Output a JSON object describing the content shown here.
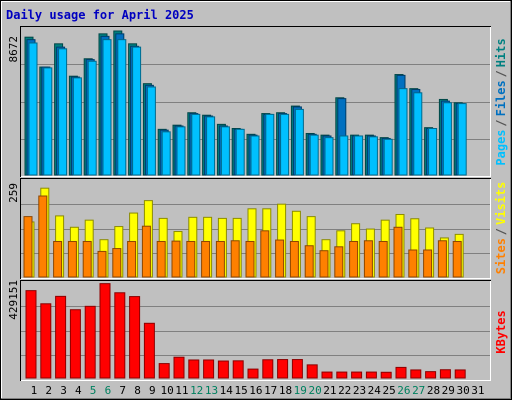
{
  "chart_data": {
    "title": "Daily usage for April 2025",
    "type": "bar",
    "categories": [
      "1",
      "2",
      "3",
      "4",
      "5",
      "6",
      "7",
      "8",
      "9",
      "10",
      "11",
      "12",
      "13",
      "14",
      "15",
      "16",
      "17",
      "18",
      "19",
      "20",
      "21",
      "22",
      "23",
      "24",
      "25",
      "26",
      "27",
      "28",
      "29",
      "30",
      "31"
    ],
    "weekend_days": [
      "5",
      "6",
      "12",
      "13",
      "19",
      "20",
      "26",
      "27"
    ],
    "panels": [
      {
        "id": "pages_files_hits",
        "axis_max_label": "8672",
        "ylim": [
          0,
          8672
        ],
        "grid": true,
        "legend_parts": [
          "Pages",
          "/",
          "Files",
          "/",
          "Hits"
        ],
        "legend_colors": [
          "#00c0ff",
          "#555555",
          "#0070c0",
          "#555555",
          "#008080"
        ],
        "series": [
          {
            "name": "Hits",
            "color": "#008080",
            "values": [
              8300,
              6500,
              7900,
              5950,
              7000,
              8500,
              8672,
              7900,
              5500,
              2750,
              3000,
              3750,
              3600,
              3050,
              2800,
              2450,
              3700,
              3750,
              4150,
              2500,
              2400,
              4650,
              2400,
              2400,
              2250,
              6050,
              5200,
              2850,
              4550,
              4350,
              null
            ]
          },
          {
            "name": "Files",
            "color": "#0070c0",
            "values": [
              8150,
              6500,
              7700,
              5900,
              6950,
              8350,
              8500,
              7750,
              5400,
              2700,
              2950,
              3700,
              3550,
              2950,
              2750,
              2400,
              3650,
              3700,
              4100,
              2450,
              2350,
              4600,
              2350,
              2350,
              2200,
              6000,
              5150,
              2800,
              4450,
              4300,
              null
            ]
          },
          {
            "name": "Pages",
            "color": "#00c0ff",
            "values": [
              7950,
              6450,
              7600,
              5850,
              6850,
              8150,
              8150,
              7700,
              5300,
              2600,
              2900,
              3650,
              3500,
              2900,
              2750,
              2350,
              3650,
              3650,
              3950,
              2400,
              2250,
              2350,
              2350,
              2300,
              2150,
              5200,
              4950,
              2800,
              4350,
              4300,
              null
            ]
          }
        ]
      },
      {
        "id": "visits_sites",
        "axis_max_label": "259",
        "ylim": [
          0,
          259
        ],
        "grid": true,
        "legend_parts": [
          "Sites",
          "/",
          "Visits"
        ],
        "legend_colors": [
          "#ff8000",
          "#555555",
          "#ffff00"
        ],
        "series": [
          {
            "name": "Visits",
            "color": "#ffff00",
            "values": [
              155,
              250,
              172,
              140,
              160,
              105,
              142,
              180,
              215,
              165,
              128,
              168,
              168,
              165,
              165,
              192,
              192,
              205,
              185,
              170,
              105,
              130,
              150,
              135,
              160,
              176,
              164,
              138,
              110,
              120,
              null
            ]
          },
          {
            "name": "Sites",
            "color": "#ff8000",
            "values": [
              170,
              228,
              100,
              100,
              100,
              72,
              80,
              100,
              143,
              100,
              101,
              100,
              100,
              100,
              102,
              100,
              130,
              104,
              100,
              88,
              74,
              85,
              100,
              102,
              100,
              140,
              76,
              76,
              102,
              100,
              null
            ]
          }
        ]
      },
      {
        "id": "kbytes",
        "axis_max_label": "429151",
        "ylim": [
          0,
          429151
        ],
        "grid": true,
        "legend_parts": [
          "KBytes"
        ],
        "legend_colors": [
          "#ff0000"
        ],
        "series": [
          {
            "name": "KBytes",
            "color": "#ff0000",
            "values": [
              412000,
              350000,
              385000,
              322000,
              338000,
              445000,
              402000,
              384000,
              258000,
              68000,
              98000,
              85000,
              85000,
              80000,
              81000,
              42000,
              86000,
              87000,
              87000,
              62000,
              28000,
              28000,
              28000,
              28000,
              27000,
              50000,
              38000,
              30000,
              39000,
              38000,
              null
            ]
          }
        ]
      }
    ]
  }
}
